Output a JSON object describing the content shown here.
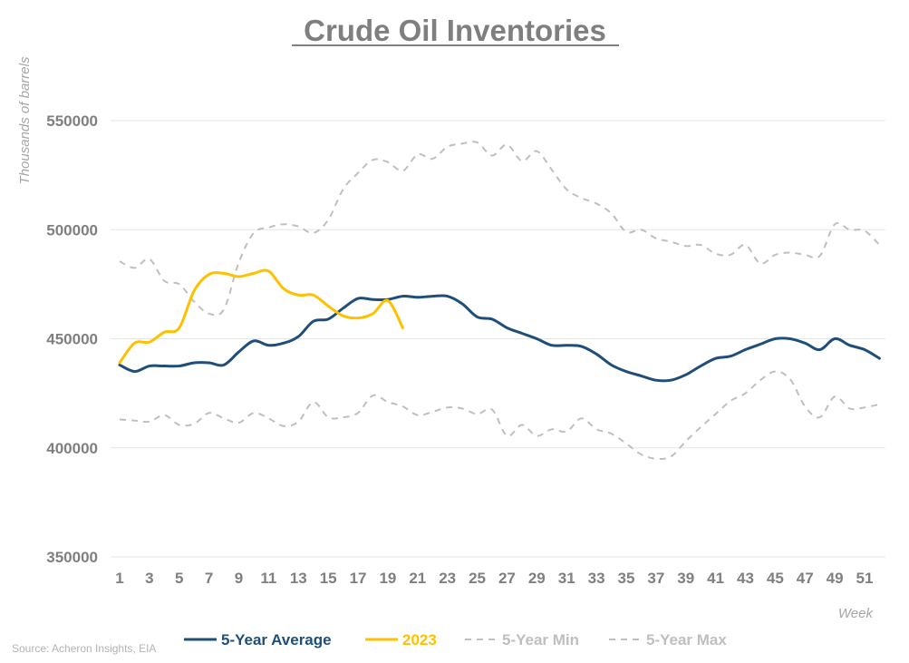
{
  "chart_data": {
    "type": "line",
    "title": "Crude Oil Inventories",
    "ylabel": "Thousands of barrels",
    "xlabel": "Week",
    "ylim": [
      350000,
      550000
    ],
    "yticks": [
      350000,
      400000,
      450000,
      500000,
      550000
    ],
    "ytick_labels": [
      "350000",
      "400000",
      "450000",
      "500000",
      "550000"
    ],
    "xlim": [
      1,
      52
    ],
    "xticks": [
      1,
      3,
      5,
      7,
      9,
      11,
      13,
      15,
      17,
      19,
      21,
      23,
      25,
      27,
      29,
      31,
      33,
      35,
      37,
      39,
      41,
      43,
      45,
      47,
      49,
      51
    ],
    "xtick_labels": [
      "1",
      "3",
      "5",
      "7",
      "9",
      "11",
      "13",
      "15",
      "17",
      "19",
      "21",
      "23",
      "25",
      "27",
      "29",
      "31",
      "33",
      "35",
      "37",
      "39",
      "41",
      "43",
      "45",
      "47",
      "49",
      "51"
    ],
    "grid": true,
    "legend_position": "bottom",
    "series": [
      {
        "name": "5-Year Average",
        "color": "#1f4e79",
        "style": "solid",
        "values": [
          438000,
          435000,
          437500,
          437500,
          437500,
          439000,
          439000,
          438000,
          444000,
          449000,
          447000,
          448000,
          451000,
          458000,
          459000,
          464000,
          468500,
          468000,
          468000,
          469500,
          469000,
          469500,
          469500,
          466000,
          460000,
          459000,
          455000,
          452500,
          450000,
          447000,
          447000,
          446500,
          443000,
          438000,
          435000,
          433000,
          431000,
          431000,
          433500,
          437500,
          441000,
          442000,
          445000,
          447500,
          450000,
          450000,
          448000,
          445000,
          450000,
          447000,
          445000,
          441000
        ]
      },
      {
        "name": "2023",
        "color": "#ffc000",
        "style": "solid",
        "values": [
          439000,
          448000,
          448500,
          453000,
          455000,
          472000,
          479500,
          480000,
          478500,
          480000,
          481000,
          473000,
          470000,
          470000,
          465000,
          460500,
          459500,
          461500,
          467500,
          455000
        ]
      },
      {
        "name": "5-Year Min",
        "color": "#bfbfbf",
        "style": "dashed",
        "values": [
          413000,
          412500,
          412000,
          415000,
          410500,
          411000,
          416000,
          413500,
          411500,
          416000,
          413500,
          410000,
          412000,
          421000,
          414000,
          414000,
          416000,
          424000,
          421000,
          419000,
          415000,
          416500,
          418500,
          418000,
          415500,
          417500,
          405500,
          410500,
          405500,
          408500,
          407500,
          413500,
          408500,
          406500,
          402000,
          397000,
          395000,
          396000,
          403000,
          409500,
          415500,
          421500,
          425000,
          431000,
          435000,
          431500,
          419000,
          414000,
          423500,
          418000,
          418500,
          420000
        ]
      },
      {
        "name": "5-Year Max",
        "color": "#bfbfbf",
        "style": "dashed",
        "values": [
          485500,
          482500,
          486500,
          476500,
          475000,
          467000,
          461500,
          463500,
          485000,
          498500,
          501000,
          502500,
          501500,
          498500,
          504500,
          518500,
          526000,
          532000,
          531000,
          527000,
          534500,
          532500,
          538000,
          539500,
          540000,
          534000,
          539000,
          531500,
          536000,
          527500,
          518500,
          514500,
          512000,
          507500,
          499000,
          500000,
          496000,
          494500,
          492500,
          493000,
          489000,
          488500,
          493000,
          484500,
          488500,
          489500,
          488500,
          488000,
          502500,
          500000,
          499500,
          493000
        ]
      }
    ],
    "source": "Source: Acheron Insights, EIA"
  }
}
